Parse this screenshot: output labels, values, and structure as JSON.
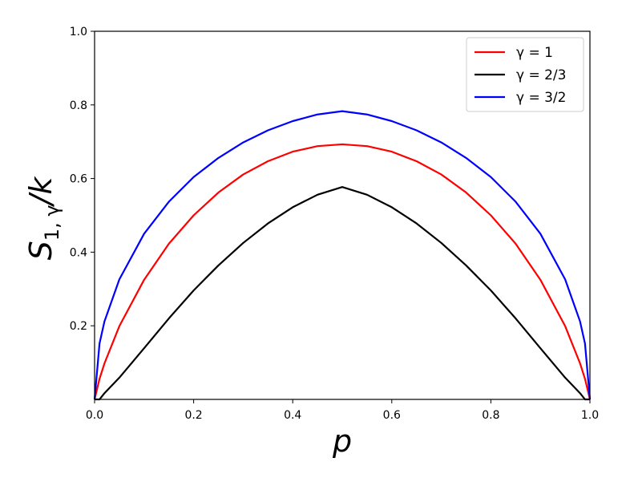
{
  "chart_data": {
    "type": "line",
    "xlabel": "p",
    "ylabel": {
      "base": "S",
      "subscript": "1, γ",
      "suffix": "/k"
    },
    "xlim": [
      0.0,
      1.0
    ],
    "ylim": [
      0.0,
      1.0
    ],
    "xticks": [
      "0.0",
      "0.2",
      "0.4",
      "0.6",
      "0.8",
      "1.0"
    ],
    "yticks": [
      "0.2",
      "0.4",
      "0.6",
      "0.8",
      "1.0"
    ],
    "grid": false,
    "legend_position": "top-right",
    "x": [
      0.0,
      0.01,
      0.02,
      0.05,
      0.1,
      0.15,
      0.2,
      0.25,
      0.3,
      0.35,
      0.4,
      0.45,
      0.5,
      0.55,
      0.6,
      0.65,
      0.7,
      0.75,
      0.8,
      0.85,
      0.9,
      0.95,
      0.98,
      0.99,
      1.0
    ],
    "series": [
      {
        "name": "γ = 1",
        "color": "#ff0000",
        "values": [
          0.0,
          0.056,
          0.098,
          0.199,
          0.325,
          0.423,
          0.5,
          0.562,
          0.611,
          0.647,
          0.673,
          0.688,
          0.693,
          0.688,
          0.673,
          0.647,
          0.611,
          0.562,
          0.5,
          0.423,
          0.325,
          0.199,
          0.098,
          0.056,
          0.0
        ]
      },
      {
        "name": "γ = 2/3",
        "color": "#000000",
        "values": [
          0.0,
          0.0,
          0.017,
          0.059,
          0.139,
          0.22,
          0.296,
          0.364,
          0.425,
          0.478,
          0.522,
          0.556,
          0.577,
          0.556,
          0.522,
          0.478,
          0.425,
          0.364,
          0.296,
          0.22,
          0.139,
          0.059,
          0.017,
          0.0,
          0.0
        ]
      },
      {
        "name": "γ = 3/2",
        "color": "#0000ff",
        "values": [
          0.0,
          0.152,
          0.212,
          0.326,
          0.45,
          0.537,
          0.604,
          0.656,
          0.698,
          0.731,
          0.756,
          0.774,
          0.783,
          0.774,
          0.756,
          0.731,
          0.698,
          0.656,
          0.604,
          0.537,
          0.45,
          0.326,
          0.212,
          0.152,
          0.0
        ]
      }
    ]
  }
}
